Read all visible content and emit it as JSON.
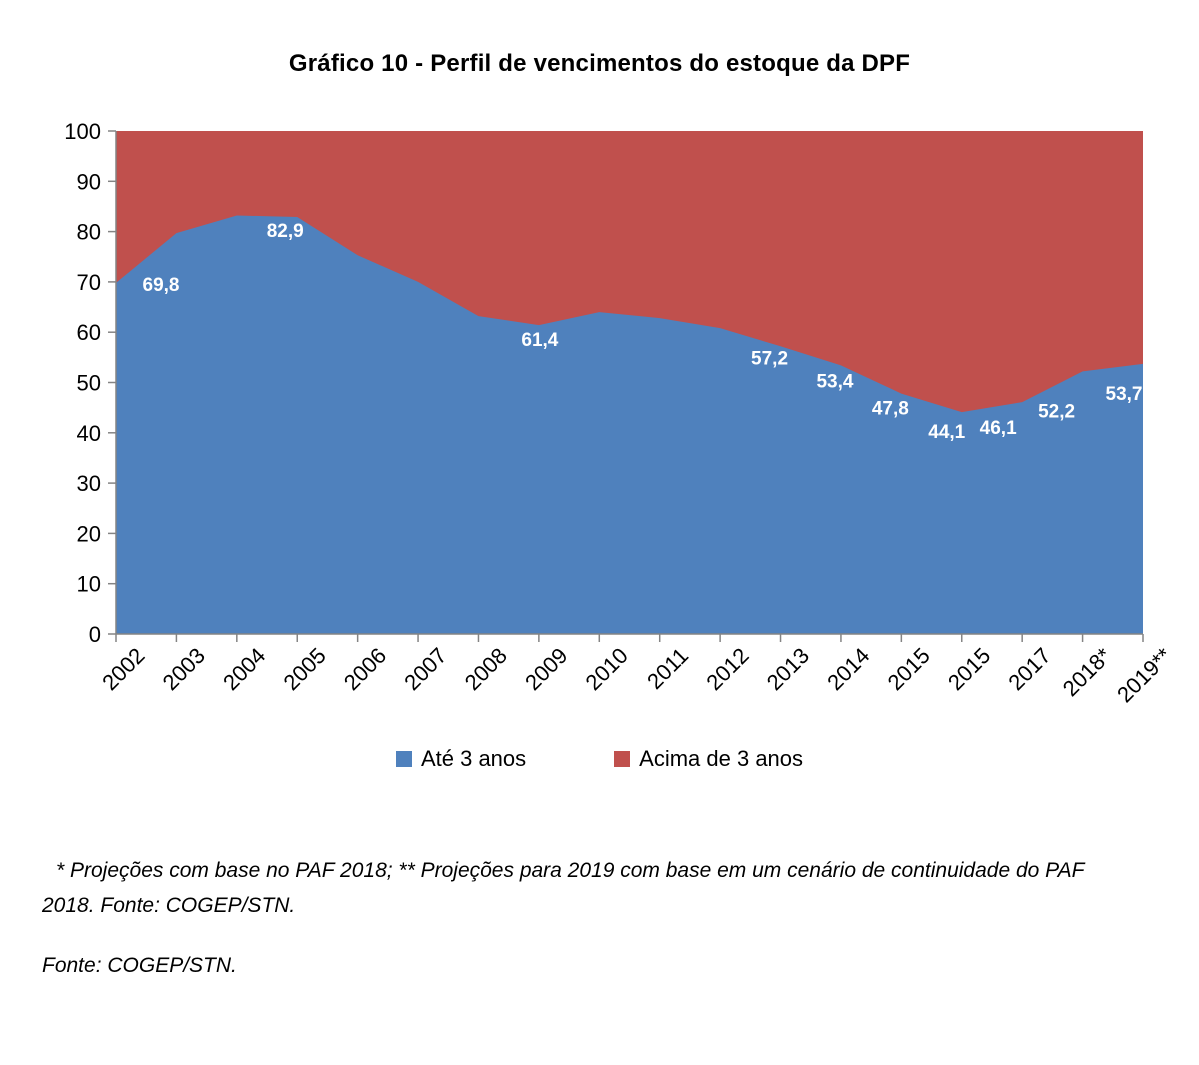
{
  "chart_data": {
    "type": "area",
    "stacked": true,
    "stacked_to_100": true,
    "title": "Gráfico 10 - Perfil de vencimentos do estoque da DPF",
    "categories": [
      "2002",
      "2003",
      "2004",
      "2005",
      "2006",
      "2007",
      "2008",
      "2009",
      "2010",
      "2011",
      "2012",
      "2013",
      "2014",
      "2015",
      "2015",
      "2017",
      "2018*",
      "2019**"
    ],
    "series": [
      {
        "name": "Até 3 anos",
        "color": "#4F81BD",
        "values": [
          69.8,
          79.7,
          83.2,
          82.9,
          75.3,
          70.0,
          63.2,
          61.4,
          64.0,
          62.8,
          60.8,
          57.2,
          53.4,
          47.8,
          44.1,
          46.1,
          52.2,
          53.7
        ]
      },
      {
        "name": "Acima de 3 anos",
        "color": "#C0504D",
        "values": [
          30.2,
          20.3,
          16.8,
          17.1,
          24.7,
          30.0,
          36.8,
          38.6,
          36.0,
          37.2,
          39.2,
          42.8,
          46.6,
          52.2,
          55.9,
          53.9,
          47.8,
          46.3
        ]
      }
    ],
    "data_labels": [
      "69,8",
      null,
      null,
      "82,9",
      null,
      null,
      null,
      "61,4",
      null,
      null,
      null,
      "57,2",
      "53,4",
      "47,8",
      "44,1",
      "46,1",
      "52,2",
      "53,7"
    ],
    "data_label_color": "#ffffff",
    "ylim": [
      0,
      100
    ],
    "y_ticks": [
      0,
      10,
      20,
      30,
      40,
      50,
      60,
      70,
      80,
      90,
      100
    ],
    "grid": false,
    "axis_color": "#848484",
    "legend_position": "bottom",
    "legend": [
      "Até 3 anos",
      "Acima de 3 anos"
    ]
  },
  "notes": {
    "footnote": "* Projeções com base no PAF 2018; ** Projeções para 2019 com base em um cenário de continuidade do PAF 2018. Fonte: COGEP/STN.",
    "source": "Fonte: COGEP/STN."
  }
}
